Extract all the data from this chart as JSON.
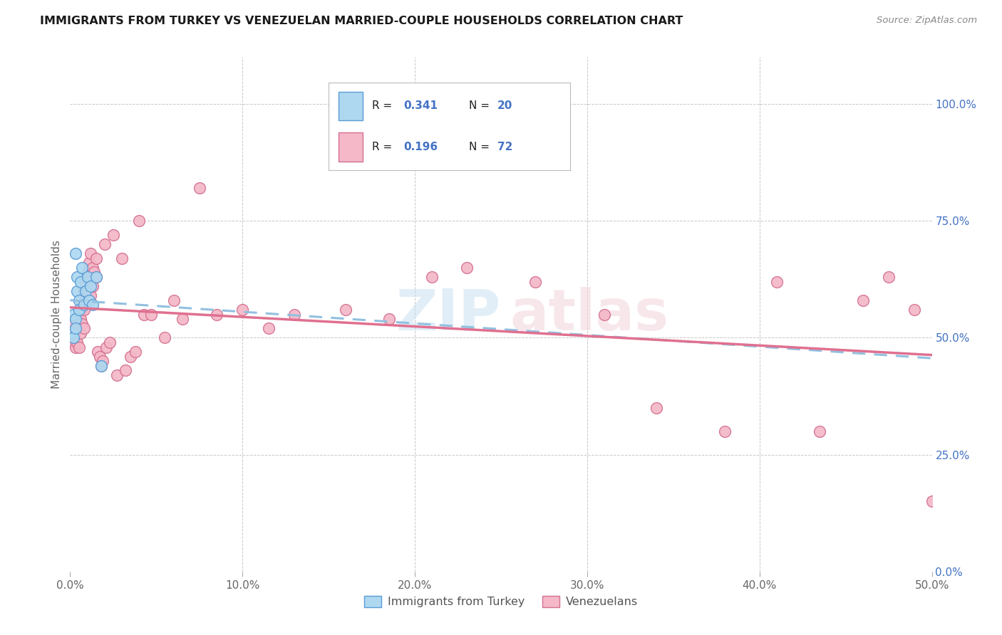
{
  "title": "IMMIGRANTS FROM TURKEY VS VENEZUELAN MARRIED-COUPLE HOUSEHOLDS CORRELATION CHART",
  "source": "Source: ZipAtlas.com",
  "ylabel": "Married-couple Households",
  "xlim": [
    0.0,
    0.5
  ],
  "ylim": [
    0.0,
    1.1
  ],
  "xtick_vals": [
    0.0,
    0.1,
    0.2,
    0.3,
    0.4,
    0.5
  ],
  "xticklabels": [
    "0.0%",
    "10.0%",
    "20.0%",
    "30.0%",
    "40.0%",
    "50.0%"
  ],
  "ytick_vals": [
    0.0,
    0.25,
    0.5,
    0.75,
    1.0
  ],
  "yticklabels": [
    "0.0%",
    "25.0%",
    "50.0%",
    "75.0%",
    "100.0%"
  ],
  "legend_R_blue": "0.341",
  "legend_N_blue": "20",
  "legend_R_pink": "0.196",
  "legend_N_pink": "72",
  "legend_label_blue": "Immigrants from Turkey",
  "legend_label_pink": "Venezuelans",
  "color_blue_fill": "#add8f0",
  "color_blue_edge": "#5b9bd5",
  "color_blue_line": "#92c0e0",
  "color_pink_fill": "#f4b8c8",
  "color_pink_edge": "#d47090",
  "color_pink_line": "#e07090",
  "color_label": "#4472c4",
  "background": "#ffffff",
  "grid_color": "#c8c8c8",
  "blue_x": [
    0.001,
    0.002,
    0.002,
    0.003,
    0.003,
    0.003,
    0.004,
    0.004,
    0.005,
    0.005,
    0.006,
    0.007,
    0.008,
    0.009,
    0.01,
    0.011,
    0.012,
    0.013,
    0.015,
    0.018
  ],
  "blue_y": [
    0.51,
    0.5,
    0.55,
    0.54,
    0.52,
    0.68,
    0.6,
    0.63,
    0.58,
    0.56,
    0.62,
    0.65,
    0.57,
    0.6,
    0.63,
    0.58,
    0.61,
    0.57,
    0.63,
    0.44
  ],
  "pink_x": [
    0.001,
    0.001,
    0.002,
    0.002,
    0.003,
    0.003,
    0.003,
    0.004,
    0.004,
    0.004,
    0.005,
    0.005,
    0.005,
    0.006,
    0.006,
    0.006,
    0.007,
    0.007,
    0.008,
    0.008,
    0.008,
    0.009,
    0.009,
    0.01,
    0.01,
    0.011,
    0.011,
    0.012,
    0.012,
    0.013,
    0.013,
    0.014,
    0.015,
    0.015,
    0.016,
    0.017,
    0.018,
    0.019,
    0.02,
    0.021,
    0.023,
    0.025,
    0.027,
    0.03,
    0.032,
    0.035,
    0.038,
    0.04,
    0.043,
    0.047,
    0.055,
    0.06,
    0.065,
    0.075,
    0.085,
    0.1,
    0.115,
    0.13,
    0.16,
    0.185,
    0.21,
    0.23,
    0.27,
    0.31,
    0.34,
    0.38,
    0.41,
    0.435,
    0.46,
    0.475,
    0.49,
    0.5
  ],
  "pink_y": [
    0.51,
    0.5,
    0.53,
    0.49,
    0.52,
    0.5,
    0.48,
    0.54,
    0.52,
    0.49,
    0.55,
    0.53,
    0.48,
    0.56,
    0.54,
    0.51,
    0.57,
    0.53,
    0.6,
    0.56,
    0.52,
    0.62,
    0.58,
    0.64,
    0.6,
    0.66,
    0.62,
    0.68,
    0.59,
    0.65,
    0.61,
    0.64,
    0.67,
    0.63,
    0.47,
    0.46,
    0.44,
    0.45,
    0.7,
    0.48,
    0.49,
    0.72,
    0.42,
    0.67,
    0.43,
    0.46,
    0.47,
    0.75,
    0.55,
    0.55,
    0.5,
    0.58,
    0.54,
    0.82,
    0.55,
    0.56,
    0.52,
    0.55,
    0.56,
    0.54,
    0.63,
    0.65,
    0.62,
    0.55,
    0.35,
    0.3,
    0.62,
    0.3,
    0.58,
    0.63,
    0.56,
    0.15
  ]
}
